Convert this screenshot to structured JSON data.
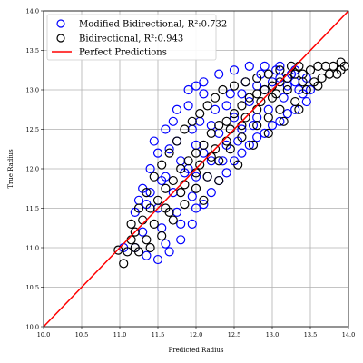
{
  "chart_data": {
    "type": "scatter",
    "xlabel": "Predicted Radius",
    "ylabel": "True Radius",
    "xlim": [
      10.0,
      14.0
    ],
    "ylim": [
      10.0,
      14.0
    ],
    "x_ticks": [
      "10.0",
      "10.5",
      "11.0",
      "11.5",
      "12.0",
      "12.5",
      "13.0",
      "13.5",
      "14.0"
    ],
    "y_ticks": [
      "10.0",
      "10.5",
      "11.0",
      "11.5",
      "12.0",
      "12.5",
      "13.0",
      "13.5",
      "14.0"
    ],
    "grid": true,
    "legend_position": "upper-left",
    "series": [
      {
        "name": "Modified Bidirectional, R²:0.732",
        "marker": "open-circle",
        "color": "#0000ff",
        "points": [
          [
            11.05,
            11.0
          ],
          [
            11.2,
            11.45
          ],
          [
            11.25,
            11.6
          ],
          [
            11.3,
            11.75
          ],
          [
            11.4,
            12.0
          ],
          [
            11.5,
            12.2
          ],
          [
            11.6,
            12.5
          ],
          [
            11.75,
            12.75
          ],
          [
            11.9,
            13.0
          ],
          [
            12.0,
            13.05
          ],
          [
            12.1,
            13.1
          ],
          [
            12.3,
            13.2
          ],
          [
            12.5,
            13.25
          ],
          [
            12.7,
            13.3
          ],
          [
            12.9,
            13.3
          ],
          [
            13.1,
            13.3
          ],
          [
            13.3,
            13.25
          ],
          [
            13.45,
            13.15
          ],
          [
            13.5,
            13.0
          ],
          [
            13.45,
            12.85
          ],
          [
            13.3,
            12.75
          ],
          [
            13.1,
            12.6
          ],
          [
            12.9,
            12.45
          ],
          [
            12.7,
            12.3
          ],
          [
            12.5,
            12.1
          ],
          [
            12.3,
            11.85
          ],
          [
            12.1,
            11.55
          ],
          [
            11.95,
            11.3
          ],
          [
            11.8,
            11.1
          ],
          [
            11.65,
            10.95
          ],
          [
            11.5,
            10.85
          ],
          [
            11.35,
            10.9
          ],
          [
            11.2,
            11.0
          ],
          [
            11.4,
            11.7
          ],
          [
            11.6,
            11.9
          ],
          [
            11.8,
            12.1
          ],
          [
            12.0,
            12.3
          ],
          [
            12.2,
            12.55
          ],
          [
            12.4,
            12.8
          ],
          [
            12.6,
            12.95
          ],
          [
            12.8,
            13.05
          ],
          [
            13.0,
            13.1
          ],
          [
            13.2,
            13.05
          ],
          [
            12.0,
            11.9
          ],
          [
            12.2,
            12.1
          ],
          [
            12.4,
            12.3
          ],
          [
            12.6,
            12.5
          ],
          [
            12.8,
            12.65
          ],
          [
            11.7,
            12.6
          ],
          [
            11.9,
            12.8
          ],
          [
            12.1,
            12.95
          ],
          [
            11.55,
            11.25
          ],
          [
            11.75,
            11.45
          ],
          [
            11.95,
            11.65
          ],
          [
            12.15,
            11.9
          ],
          [
            12.35,
            12.1
          ],
          [
            12.55,
            12.35
          ],
          [
            12.75,
            12.55
          ],
          [
            12.95,
            12.75
          ],
          [
            13.15,
            12.9
          ],
          [
            13.35,
            13.0
          ],
          [
            11.45,
            12.35
          ],
          [
            11.65,
            12.25
          ],
          [
            11.85,
            11.95
          ],
          [
            12.05,
            12.6
          ],
          [
            12.25,
            12.75
          ],
          [
            12.45,
            12.95
          ],
          [
            12.65,
            13.1
          ],
          [
            12.85,
            13.2
          ],
          [
            13.05,
            13.25
          ],
          [
            13.25,
            13.2
          ],
          [
            11.3,
            11.2
          ],
          [
            11.5,
            11.5
          ],
          [
            11.7,
            11.7
          ],
          [
            11.9,
            12.0
          ],
          [
            12.1,
            12.2
          ],
          [
            12.3,
            12.45
          ],
          [
            12.5,
            12.65
          ],
          [
            12.7,
            12.85
          ],
          [
            12.9,
            13.0
          ],
          [
            13.1,
            13.15
          ],
          [
            13.3,
            13.1
          ],
          [
            13.4,
            12.95
          ],
          [
            11.6,
            11.05
          ],
          [
            11.8,
            11.3
          ],
          [
            12.0,
            11.5
          ],
          [
            12.2,
            11.7
          ],
          [
            12.4,
            11.95
          ],
          [
            12.6,
            12.2
          ],
          [
            12.8,
            12.4
          ],
          [
            13.0,
            12.55
          ],
          [
            13.2,
            12.7
          ],
          [
            11.35,
            11.55
          ],
          [
            11.55,
            11.85
          ],
          [
            11.75,
            12.35
          ],
          [
            11.95,
            12.5
          ]
        ]
      },
      {
        "name": "Bidirectional, R²:0.943",
        "marker": "open-circle",
        "color": "#000000",
        "points": [
          [
            10.98,
            10.97
          ],
          [
            11.05,
            10.8
          ],
          [
            11.1,
            10.95
          ],
          [
            11.15,
            11.1
          ],
          [
            11.2,
            11.2
          ],
          [
            11.3,
            11.35
          ],
          [
            11.4,
            11.5
          ],
          [
            11.5,
            11.6
          ],
          [
            11.6,
            11.75
          ],
          [
            11.7,
            11.85
          ],
          [
            11.8,
            12.0
          ],
          [
            11.9,
            12.1
          ],
          [
            12.0,
            12.2
          ],
          [
            12.1,
            12.3
          ],
          [
            12.2,
            12.45
          ],
          [
            12.3,
            12.55
          ],
          [
            12.4,
            12.6
          ],
          [
            12.5,
            12.7
          ],
          [
            12.6,
            12.8
          ],
          [
            12.7,
            12.9
          ],
          [
            12.8,
            12.95
          ],
          [
            12.9,
            13.0
          ],
          [
            13.0,
            13.05
          ],
          [
            13.1,
            13.1
          ],
          [
            13.2,
            13.15
          ],
          [
            13.3,
            13.2
          ],
          [
            13.4,
            13.2
          ],
          [
            13.5,
            13.25
          ],
          [
            13.6,
            13.3
          ],
          [
            13.7,
            13.3
          ],
          [
            13.8,
            13.3
          ],
          [
            13.9,
            13.35
          ],
          [
            13.95,
            13.3
          ],
          [
            13.85,
            13.2
          ],
          [
            13.65,
            13.15
          ],
          [
            13.55,
            13.1
          ],
          [
            13.45,
            13.0
          ],
          [
            13.3,
            12.85
          ],
          [
            13.1,
            12.75
          ],
          [
            12.95,
            12.65
          ],
          [
            12.8,
            12.55
          ],
          [
            12.6,
            12.4
          ],
          [
            12.45,
            12.25
          ],
          [
            12.3,
            12.1
          ],
          [
            12.15,
            11.9
          ],
          [
            12.0,
            11.75
          ],
          [
            11.85,
            11.55
          ],
          [
            11.7,
            11.35
          ],
          [
            11.55,
            11.15
          ],
          [
            11.4,
            11.0
          ],
          [
            11.25,
            10.95
          ],
          [
            11.15,
            11.3
          ],
          [
            11.25,
            11.5
          ],
          [
            11.35,
            11.7
          ],
          [
            11.45,
            11.9
          ],
          [
            11.55,
            12.05
          ],
          [
            11.65,
            12.2
          ],
          [
            11.75,
            12.35
          ],
          [
            11.85,
            12.5
          ],
          [
            11.95,
            12.6
          ],
          [
            12.05,
            12.7
          ],
          [
            12.15,
            12.8
          ],
          [
            12.25,
            12.9
          ],
          [
            12.35,
            13.0
          ],
          [
            12.5,
            13.05
          ],
          [
            12.65,
            13.1
          ],
          [
            12.8,
            13.15
          ],
          [
            12.95,
            13.2
          ],
          [
            13.1,
            13.25
          ],
          [
            13.25,
            13.3
          ],
          [
            13.35,
            13.3
          ],
          [
            11.6,
            11.5
          ],
          [
            11.8,
            11.7
          ],
          [
            12.0,
            11.95
          ],
          [
            12.2,
            12.15
          ],
          [
            12.4,
            12.35
          ],
          [
            12.6,
            12.55
          ],
          [
            12.8,
            12.75
          ],
          [
            13.0,
            12.9
          ],
          [
            13.2,
            13.0
          ],
          [
            13.4,
            13.1
          ],
          [
            11.45,
            11.3
          ],
          [
            11.65,
            11.45
          ],
          [
            11.85,
            11.8
          ],
          [
            12.05,
            12.05
          ],
          [
            12.25,
            12.25
          ],
          [
            12.45,
            12.5
          ],
          [
            12.65,
            12.65
          ],
          [
            12.85,
            12.85
          ],
          [
            13.05,
            12.95
          ],
          [
            11.2,
            11.0
          ],
          [
            11.35,
            11.1
          ],
          [
            12.1,
            11.6
          ],
          [
            12.3,
            11.85
          ],
          [
            12.55,
            12.05
          ],
          [
            12.75,
            12.3
          ],
          [
            12.95,
            12.45
          ],
          [
            13.15,
            12.6
          ],
          [
            13.35,
            12.75
          ],
          [
            13.75,
            13.2
          ],
          [
            13.9,
            13.25
          ],
          [
            13.6,
            13.05
          ]
        ]
      },
      {
        "name": "Perfect Predictions",
        "marker": "line",
        "color": "#ff0000",
        "points": [
          [
            10.0,
            10.0
          ],
          [
            14.0,
            14.0
          ]
        ]
      }
    ]
  }
}
